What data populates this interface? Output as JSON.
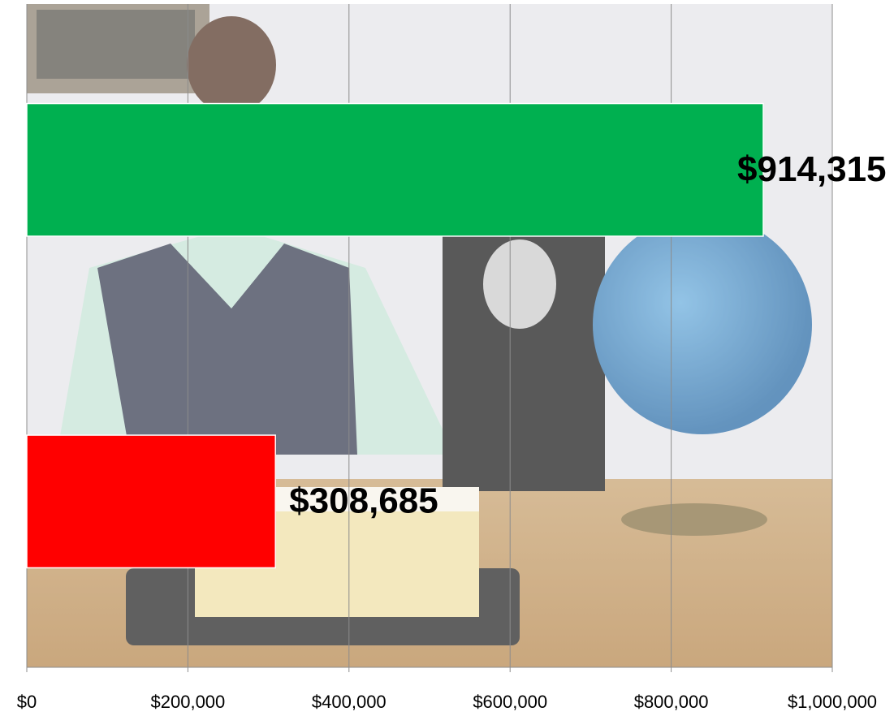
{
  "chart_data": {
    "type": "hbar",
    "categories": [
      null,
      null
    ],
    "values": [
      914315,
      308685
    ],
    "value_labels": [
      "$914,315",
      "$308,685"
    ],
    "colors": [
      "#00b050",
      "#ff0000"
    ],
    "xlim": [
      0,
      1000000
    ],
    "xticks": [
      {
        "value": 0,
        "label": "$0"
      },
      {
        "value": 200000,
        "label": "$200,000"
      },
      {
        "value": 400000,
        "label": "$400,000"
      },
      {
        "value": 600000,
        "label": "$600,000"
      },
      {
        "value": 800000,
        "label": "$800,000"
      },
      {
        "value": 1000000,
        "label": "$1,000,000"
      }
    ],
    "grid": true
  }
}
